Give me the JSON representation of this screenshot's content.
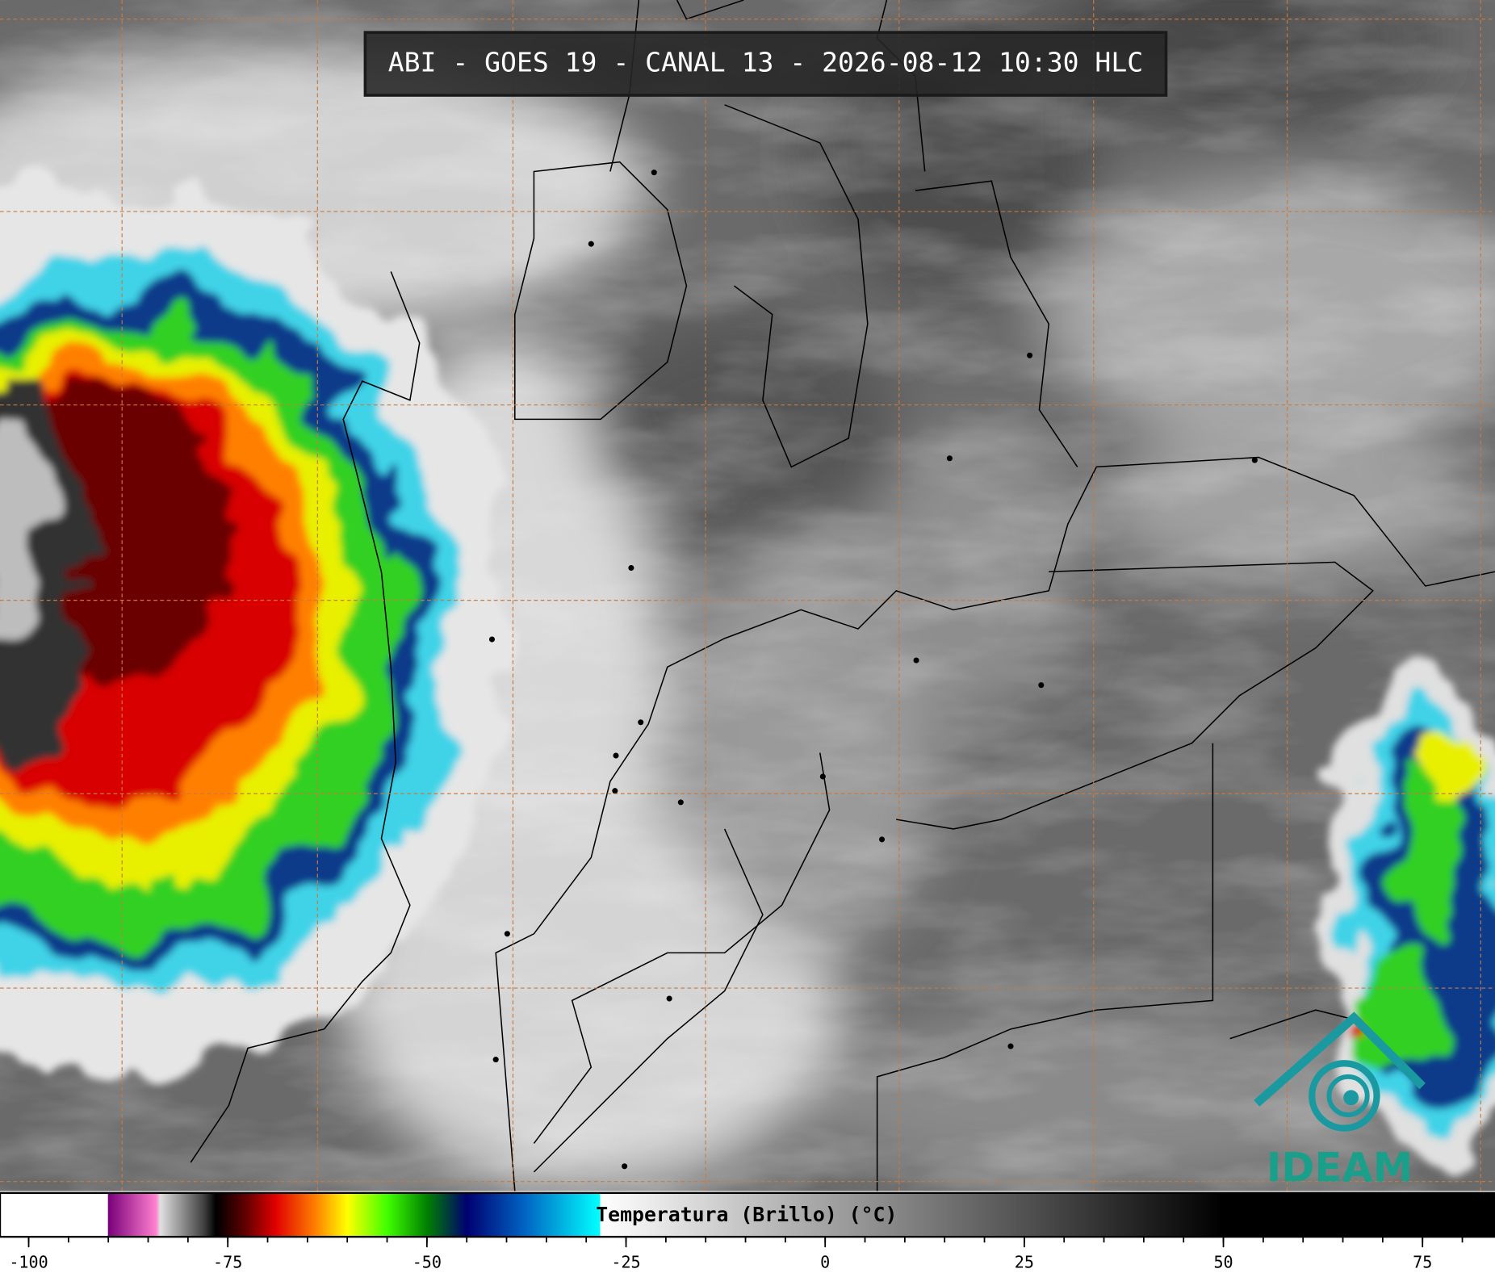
{
  "map": {
    "title": "ABI - GOES 19 - CANAL 13 - 2026-08-12 10:30 HLC",
    "logo": "IDEAM",
    "colorbar": {
      "label": "Temperatura (Brillo) (°C)",
      "lim": [
        -103.6,
        84.1
      ],
      "ticks": [
        -100,
        -75,
        -50,
        -25,
        0,
        25,
        50,
        75
      ],
      "minor_ticks": [
        -100,
        -95,
        -90,
        -85,
        -80,
        -75,
        -70,
        -65,
        -60,
        -55,
        -50,
        -45,
        -40,
        -35,
        -30,
        -25,
        -20,
        -15,
        -10,
        -5,
        0,
        5,
        10,
        15,
        20,
        25,
        30,
        35,
        40,
        45,
        50,
        55,
        60,
        65,
        70,
        75,
        80
      ],
      "stops": [
        {
          "value": -103.6,
          "color": "#ffffff"
        },
        {
          "value": -90.1,
          "color": "#ffffff"
        },
        {
          "value": -90,
          "color": "#7a007a"
        },
        {
          "value": -84,
          "color": "#ff80d0"
        },
        {
          "value": -83.5,
          "color": "#e0e0e0"
        },
        {
          "value": -78,
          "color": "#404040"
        },
        {
          "value": -76.5,
          "color": "#000000"
        },
        {
          "value": -73,
          "color": "#5a0000"
        },
        {
          "value": -69,
          "color": "#e00000"
        },
        {
          "value": -64,
          "color": "#ff8000"
        },
        {
          "value": -60,
          "color": "#ffff00"
        },
        {
          "value": -55,
          "color": "#40ff00"
        },
        {
          "value": -50,
          "color": "#008000"
        },
        {
          "value": -45,
          "color": "#000070"
        },
        {
          "value": -38,
          "color": "#0060c0"
        },
        {
          "value": -28.3,
          "color": "#00ffff"
        },
        {
          "value": -28.2,
          "color": "#ffffff"
        },
        {
          "value": 50,
          "color": "#000000"
        },
        {
          "value": 84.1,
          "color": "#000000"
        }
      ]
    }
  }
}
